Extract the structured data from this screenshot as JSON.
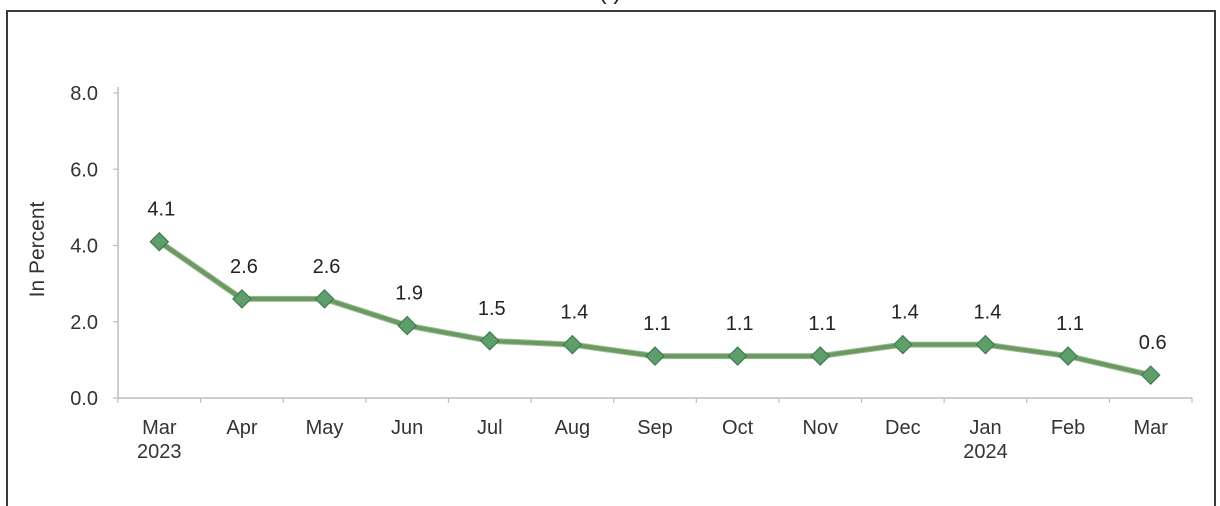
{
  "chart_data": {
    "type": "line",
    "title": "(                    )",
    "ylabel": "In Percent",
    "xlabel": "",
    "ylim": [
      0,
      8
    ],
    "yticks": [
      "0.0",
      "2.0",
      "4.0",
      "6.0",
      "8.0"
    ],
    "categories": [
      [
        "Mar",
        "2023"
      ],
      [
        "Apr"
      ],
      [
        "May"
      ],
      [
        "Jun"
      ],
      [
        "Jul"
      ],
      [
        "Aug"
      ],
      [
        "Sep"
      ],
      [
        "Oct"
      ],
      [
        "Nov"
      ],
      [
        "Dec"
      ],
      [
        "Jan",
        "2024"
      ],
      [
        "Feb"
      ],
      [
        "Mar"
      ]
    ],
    "values": [
      4.1,
      2.6,
      2.6,
      1.9,
      1.5,
      1.4,
      1.1,
      1.1,
      1.1,
      1.4,
      1.4,
      1.1,
      0.6
    ],
    "data_labels": [
      "4.1",
      "2.6",
      "2.6",
      "1.9",
      "1.5",
      "1.4",
      "1.1",
      "1.1",
      "1.1",
      "1.4",
      "1.4",
      "1.1",
      "0.6"
    ],
    "line_color": "#6a9a5f",
    "marker_color": "#5e9e6a",
    "grid": false,
    "legend": "none"
  }
}
